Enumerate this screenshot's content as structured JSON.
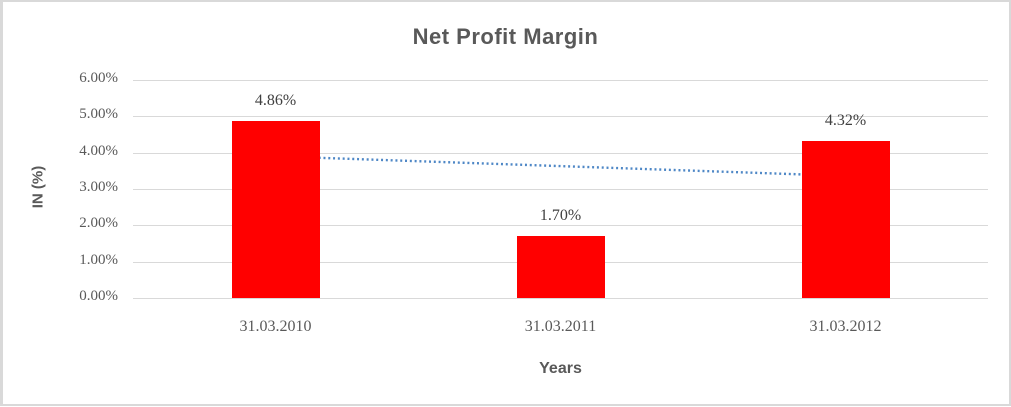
{
  "window": {
    "background": "#FFFFFF",
    "border_color": "#D9D9D9"
  },
  "chart_data": {
    "type": "bar",
    "title": "Net Profit Margin",
    "xlabel": "Years",
    "ylabel": "IN (%)",
    "categories": [
      "31.03.2010",
      "31.03.2011",
      "31.03.2012"
    ],
    "values": [
      4.86,
      1.7,
      4.32
    ],
    "data_labels": [
      "4.86%",
      "1.70%",
      "4.32%"
    ],
    "y_ticks": [
      {
        "label": "6.00%",
        "value": 6
      },
      {
        "label": "5.00%",
        "value": 5
      },
      {
        "label": "4.00%",
        "value": 4
      },
      {
        "label": "3.00%",
        "value": 3
      },
      {
        "label": "2.00%",
        "value": 2
      },
      {
        "label": "1.00%",
        "value": 1
      },
      {
        "label": "0.00%",
        "value": 0
      }
    ],
    "ylim": [
      0,
      6
    ],
    "grid": true,
    "legend": "none",
    "bar_color": "#FF0000",
    "gridline_color": "#D9D9D9",
    "axis_text_color": "#595959",
    "data_label_color": "#404040",
    "title_color": "#595959",
    "trendline": {
      "style": "dotted",
      "color": "#4E87C6",
      "start_value": 3.9,
      "end_value": 3.36
    }
  }
}
